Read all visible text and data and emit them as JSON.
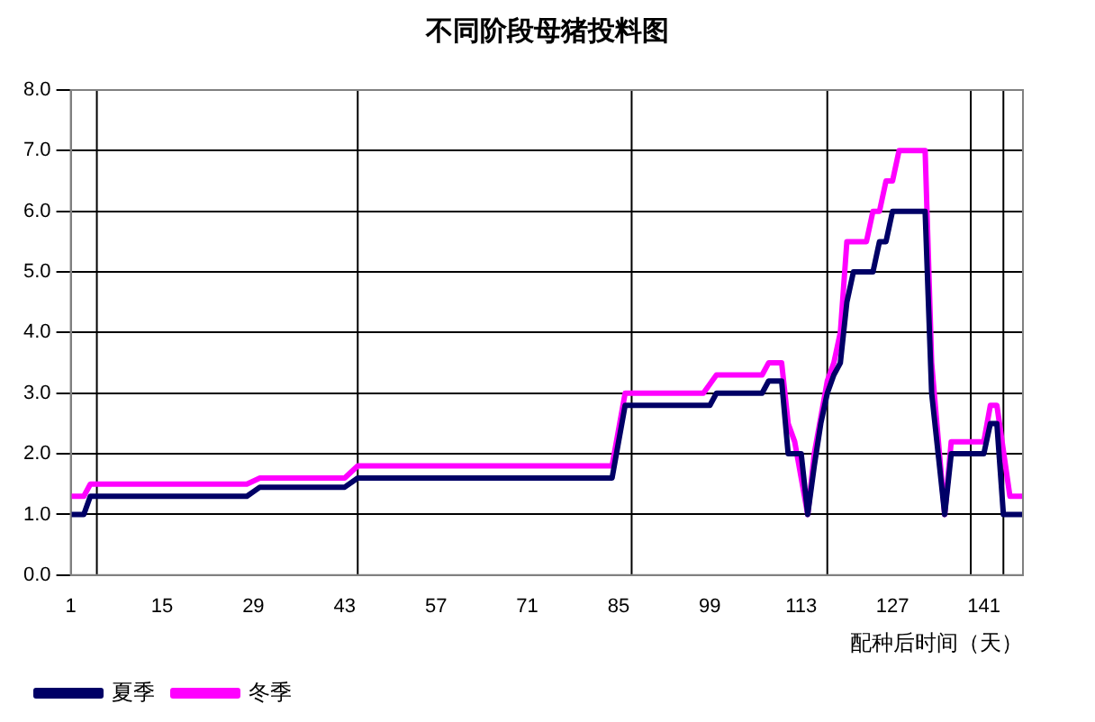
{
  "chart_data": {
    "type": "line",
    "title": "不同阶段母猪投料图",
    "xlabel": "配种后时间（天）",
    "xlim": [
      1,
      147
    ],
    "xticks": [
      1,
      15,
      29,
      43,
      57,
      71,
      85,
      99,
      113,
      127,
      141
    ],
    "ylim": [
      0,
      8
    ],
    "yticks": [
      {
        "value": 0,
        "label": "0.0"
      },
      {
        "value": 1,
        "label": "1.0"
      },
      {
        "value": 2,
        "label": "2.0"
      },
      {
        "value": 3,
        "label": "3.0"
      },
      {
        "value": 4,
        "label": "4.0"
      },
      {
        "value": 5,
        "label": "5.0"
      },
      {
        "value": 6,
        "label": "6.0"
      },
      {
        "value": 7,
        "label": "7.0"
      },
      {
        "value": 8,
        "label": "8.0"
      }
    ],
    "grid": "y",
    "legend": "bottom left",
    "marker": "none",
    "line_style": "solid",
    "ref_lines": [
      {
        "axis": "x",
        "value": 5,
        "color": "#000000"
      },
      {
        "axis": "x",
        "value": 45,
        "color": "#000000"
      },
      {
        "axis": "x",
        "value": 87,
        "color": "#000000"
      },
      {
        "axis": "x",
        "value": 117,
        "color": "#000000"
      },
      {
        "axis": "x",
        "value": 139,
        "color": "#000000"
      },
      {
        "axis": "x",
        "value": 144,
        "color": "#000000"
      }
    ],
    "series": [
      {
        "name": "夏季",
        "color": "#000066",
        "x": [
          1,
          3,
          4,
          28,
          30,
          43,
          45,
          84,
          86,
          99,
          100,
          107,
          108,
          110,
          111,
          113,
          114,
          115,
          116,
          117,
          118,
          119,
          120,
          121,
          124,
          125,
          126,
          127,
          128,
          132,
          133,
          135,
          136,
          141,
          142,
          143,
          144,
          147
        ],
        "values": [
          1.0,
          1.0,
          1.3,
          1.3,
          1.45,
          1.45,
          1.6,
          1.6,
          2.8,
          2.8,
          3.0,
          3.0,
          3.2,
          3.2,
          2.0,
          2.0,
          1.0,
          1.8,
          2.5,
          3.0,
          3.3,
          3.5,
          4.5,
          5.0,
          5.0,
          5.5,
          5.5,
          6.0,
          6.0,
          6.0,
          3.0,
          1.0,
          2.0,
          2.0,
          2.5,
          2.5,
          1.0,
          1.0
        ]
      },
      {
        "name": "冬季",
        "color": "#ff00ff",
        "x": [
          1,
          3,
          4,
          28,
          30,
          43,
          45,
          84,
          86,
          98,
          100,
          107,
          108,
          110,
          111,
          112,
          114,
          115,
          116,
          117,
          118,
          119,
          120,
          123,
          124,
          125,
          126,
          127,
          128,
          132,
          133,
          135,
          136,
          141,
          142,
          143,
          145,
          147
        ],
        "values": [
          1.3,
          1.3,
          1.5,
          1.5,
          1.6,
          1.6,
          1.8,
          1.8,
          3.0,
          3.0,
          3.3,
          3.3,
          3.5,
          3.5,
          2.5,
          2.2,
          1.0,
          2.0,
          2.6,
          3.2,
          3.5,
          4.0,
          5.5,
          5.5,
          6.0,
          6.0,
          6.5,
          6.5,
          7.0,
          7.0,
          3.5,
          1.0,
          2.2,
          2.2,
          2.8,
          2.8,
          1.3,
          1.3
        ]
      }
    ]
  }
}
